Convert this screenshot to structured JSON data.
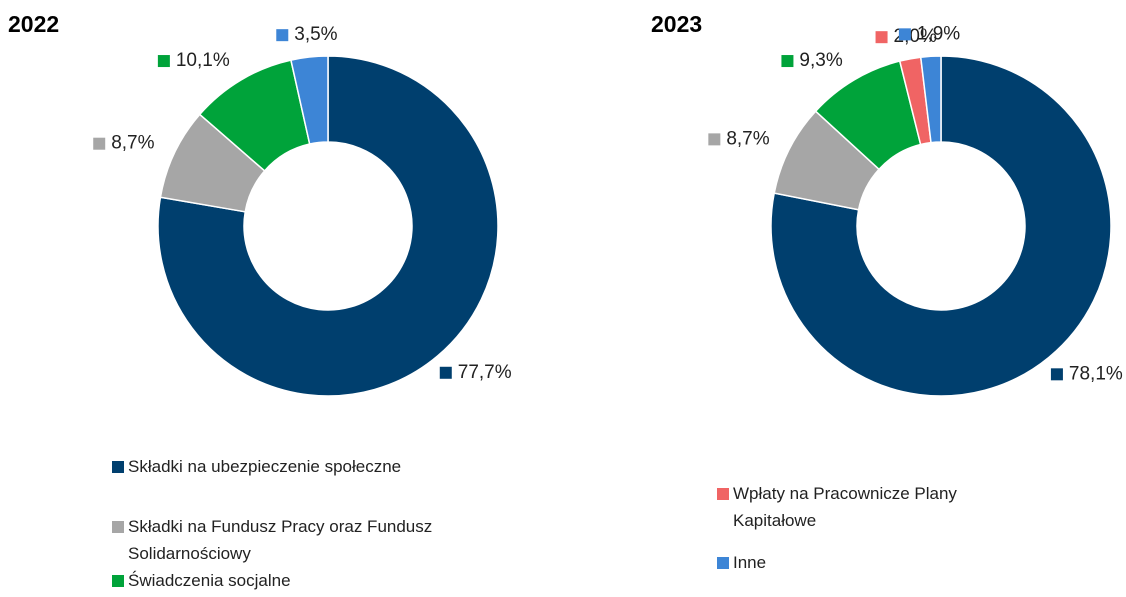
{
  "legend": {
    "categories": [
      "Składki na ubezpieczenie społeczne",
      "Składki na Fundusz Pracy oraz Fundusz Solidarnościowy",
      "Świadczenia socjalne",
      "Wpłaty na Pracownicze Plany Kapitałowe",
      "Inne"
    ],
    "colors": [
      "#003f6e",
      "#a6a6a6",
      "#00a33a",
      "#f06464",
      "#3d85d6"
    ]
  },
  "chart_data": [
    {
      "type": "donut",
      "title": "2022",
      "values": [
        77.7,
        8.7,
        10.1,
        null,
        3.5
      ],
      "value_labels": [
        "77,7%",
        "8,7%",
        "10,1%",
        null,
        "3,5%"
      ]
    },
    {
      "type": "donut",
      "title": "2023",
      "values": [
        78.1,
        8.7,
        9.3,
        2.0,
        1.9
      ],
      "value_labels": [
        "78,1%",
        "8,7%",
        "9,3%",
        "2,0%",
        "1,9%"
      ]
    }
  ]
}
